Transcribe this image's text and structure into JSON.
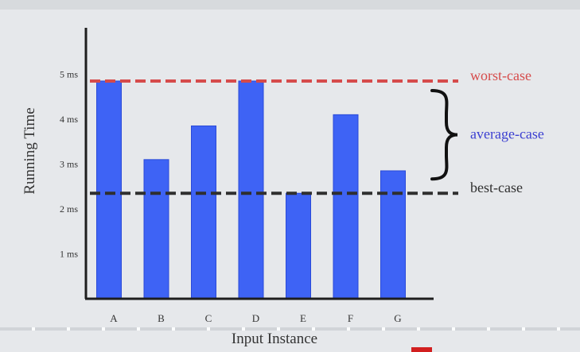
{
  "colors": {
    "background": "#e6e8eb",
    "bar": "#3e63f5",
    "bar_edge": "#2a4ad8",
    "worst": "#d64b4b",
    "average": "#3b3fd1",
    "best": "#2f2f2f",
    "axis": "#1e1e1e",
    "text": "#333333"
  },
  "chart_data": {
    "type": "bar",
    "xlabel": "Input Instance",
    "ylabel": "Running Time",
    "ylim": [
      0,
      5.5
    ],
    "categories": [
      "A",
      "B",
      "C",
      "D",
      "E",
      "F",
      "G"
    ],
    "values": [
      4.85,
      3.1,
      3.85,
      4.85,
      2.35,
      4.1,
      2.85
    ],
    "yticks": [
      {
        "value": 1,
        "label": "1 ms"
      },
      {
        "value": 2,
        "label": "2 ms"
      },
      {
        "value": 3,
        "label": "3 ms"
      },
      {
        "value": 4,
        "label": "4 ms"
      },
      {
        "value": 5,
        "label": "5 ms"
      }
    ],
    "reference_lines": [
      {
        "label": "worst-case",
        "value": 4.85,
        "color": "#d64b4b",
        "style": "dashed"
      },
      {
        "label": "best-case",
        "value": 2.35,
        "color": "#2f2f2f",
        "style": "dashed"
      }
    ],
    "range_annotation": {
      "label": "average-case",
      "from": 2.35,
      "to": 4.85,
      "color": "#3b3fd1"
    },
    "grid": false
  }
}
